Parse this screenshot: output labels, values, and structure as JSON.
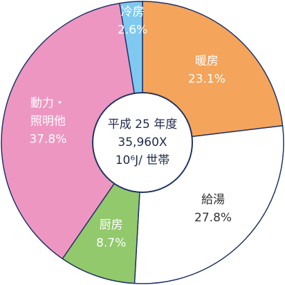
{
  "chart_data": {
    "type": "donut",
    "categories": [
      "暖房",
      "給湯",
      "厨房",
      [
        "動力・",
        "照明他"
      ],
      "冷房"
    ],
    "values": [
      23.1,
      27.8,
      8.7,
      37.8,
      2.6
    ],
    "value_labels": [
      "23.1%",
      "27.8%",
      "8.7%",
      "37.8%",
      "2.6%"
    ],
    "colors": [
      "#f4a45b",
      "#ffffff",
      "#92c96c",
      "#ee96c2",
      "#7fc9f0"
    ],
    "center_text": [
      "平成 25 年度",
      "35,960X",
      "10⁶J/ 世帯"
    ]
  }
}
